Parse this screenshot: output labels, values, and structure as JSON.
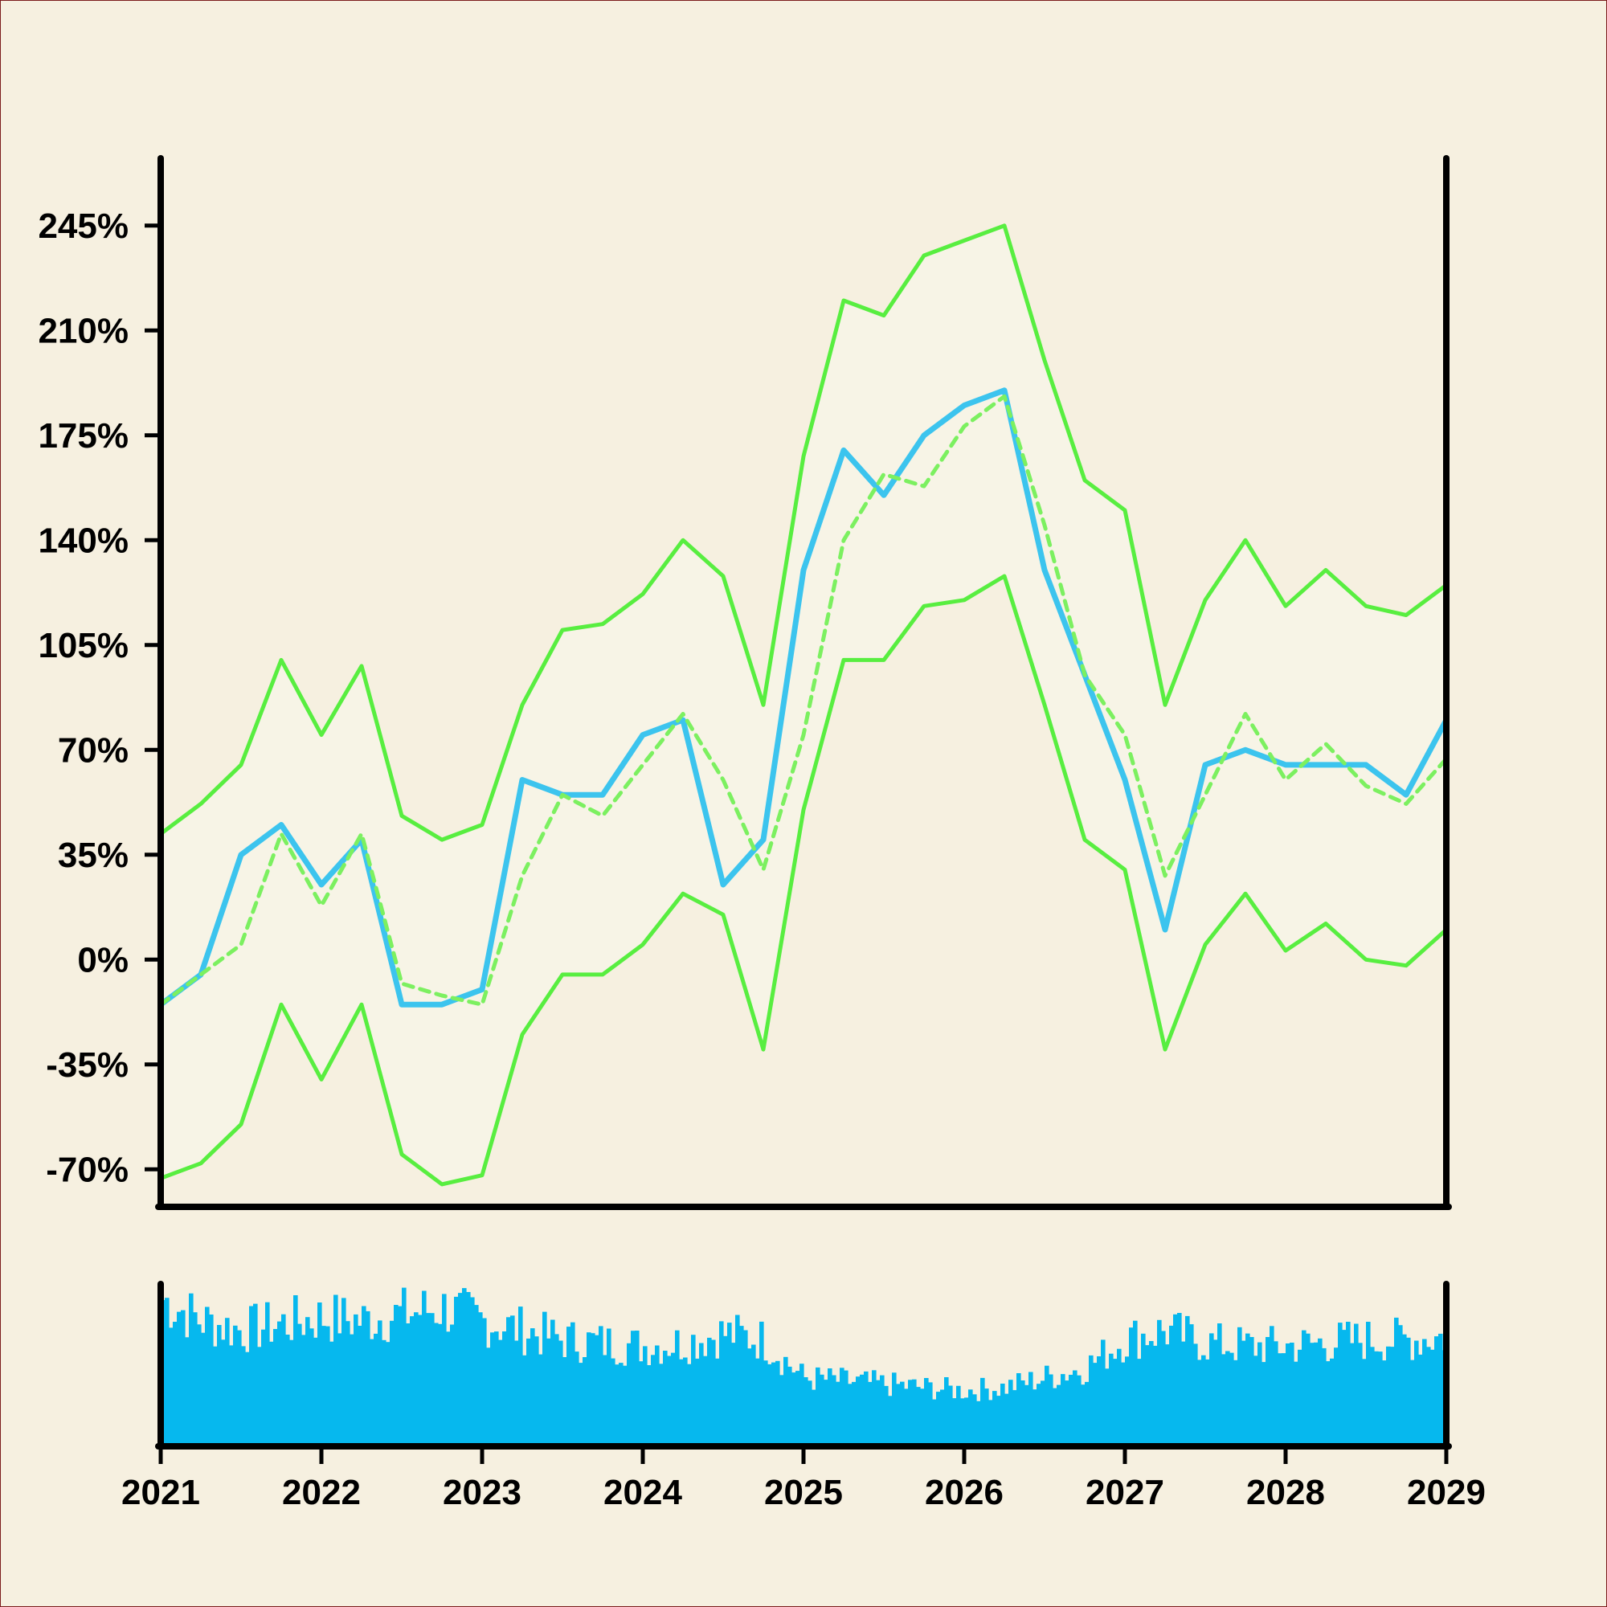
{
  "chart_data": [
    {
      "type": "line",
      "title": "",
      "xlabel": "",
      "ylabel": "",
      "xlim": [
        2021,
        2029
      ],
      "ylim": [
        -82,
        268
      ],
      "y_ticks": [
        -70,
        -35,
        0,
        35,
        70,
        105,
        140,
        175,
        210,
        245
      ],
      "y_tick_labels": [
        "-70%",
        "-35%",
        "0%",
        "35%",
        "70%",
        "105%",
        "140%",
        "175%",
        "210%",
        "245%"
      ],
      "y_format": "percent",
      "grid": false,
      "legend": "none",
      "series": [
        {
          "role": "price",
          "color": "#3cc4ee",
          "x": [
            2021.0,
            2021.25,
            2021.5,
            2021.75,
            2022.0,
            2022.25,
            2022.5,
            2022.75,
            2023.0,
            2023.25,
            2023.5,
            2023.75,
            2024.0,
            2024.25,
            2024.5,
            2024.75,
            2025.0,
            2025.25,
            2025.5,
            2025.75,
            2026.0,
            2026.25,
            2026.5,
            2026.75,
            2027.0,
            2027.25,
            2027.5,
            2027.75,
            2028.0,
            2028.25,
            2028.5,
            2028.75,
            2029.0
          ],
          "y": [
            -15,
            -5,
            35,
            45,
            25,
            40,
            -15,
            -15,
            -10,
            60,
            55,
            55,
            75,
            80,
            25,
            40,
            130,
            170,
            155,
            175,
            185,
            190,
            130,
            95,
            60,
            10,
            65,
            70,
            65,
            65,
            65,
            55,
            80
          ]
        },
        {
          "role": "moving-average",
          "color": "#7cf060",
          "dash": "dashed",
          "x": [
            2021.0,
            2021.25,
            2021.5,
            2021.75,
            2022.0,
            2022.25,
            2022.5,
            2022.75,
            2023.0,
            2023.25,
            2023.5,
            2023.75,
            2024.0,
            2024.25,
            2024.5,
            2024.75,
            2025.0,
            2025.25,
            2025.5,
            2025.75,
            2026.0,
            2026.25,
            2026.5,
            2026.75,
            2027.0,
            2027.25,
            2027.5,
            2027.75,
            2028.0,
            2028.25,
            2028.5,
            2028.75,
            2029.0
          ],
          "y": [
            -15,
            -5,
            5,
            42,
            18,
            42,
            -8,
            -12,
            -15,
            28,
            55,
            48,
            65,
            82,
            60,
            30,
            75,
            140,
            162,
            158,
            178,
            188,
            145,
            95,
            75,
            28,
            55,
            82,
            60,
            72,
            58,
            52,
            67
          ]
        },
        {
          "role": "upper-band",
          "color": "#58ee40",
          "x": [
            2021.0,
            2021.25,
            2021.5,
            2021.75,
            2022.0,
            2022.25,
            2022.5,
            2022.75,
            2023.0,
            2023.25,
            2023.5,
            2023.75,
            2024.0,
            2024.25,
            2024.5,
            2024.75,
            2025.0,
            2025.25,
            2025.5,
            2025.75,
            2026.0,
            2026.25,
            2026.5,
            2026.75,
            2027.0,
            2027.25,
            2027.5,
            2027.75,
            2028.0,
            2028.25,
            2028.5,
            2028.75,
            2029.0
          ],
          "y": [
            42,
            52,
            65,
            100,
            75,
            98,
            48,
            40,
            45,
            85,
            110,
            112,
            122,
            140,
            128,
            85,
            168,
            220,
            215,
            235,
            240,
            245,
            200,
            160,
            150,
            85,
            120,
            140,
            118,
            130,
            118,
            115,
            125
          ]
        },
        {
          "role": "lower-band",
          "color": "#58ee40",
          "x": [
            2021.0,
            2021.25,
            2021.5,
            2021.75,
            2022.0,
            2022.25,
            2022.5,
            2022.75,
            2023.0,
            2023.25,
            2023.5,
            2023.75,
            2024.0,
            2024.25,
            2024.5,
            2024.75,
            2025.0,
            2025.25,
            2025.5,
            2025.75,
            2026.0,
            2026.25,
            2026.5,
            2026.75,
            2027.0,
            2027.25,
            2027.5,
            2027.75,
            2028.0,
            2028.25,
            2028.5,
            2028.75,
            2029.0
          ],
          "y": [
            -73,
            -68,
            -55,
            -15,
            -40,
            -15,
            -65,
            -75,
            -72,
            -25,
            -5,
            -5,
            5,
            22,
            15,
            -30,
            50,
            100,
            100,
            118,
            120,
            128,
            85,
            40,
            30,
            -30,
            5,
            22,
            3,
            12,
            0,
            -2,
            10
          ]
        }
      ]
    },
    {
      "type": "bar",
      "title": "",
      "xlabel": "",
      "ylabel": "",
      "xlim": [
        2021,
        2029
      ],
      "x_ticks": [
        "2021",
        "2022",
        "2023",
        "2024",
        "2025",
        "2026",
        "2027",
        "2028",
        "2029"
      ],
      "ylim": [
        0,
        1
      ],
      "color": "#06b8ee",
      "grid": false,
      "legend": "none",
      "x": [
        2021.0,
        2021.25,
        2021.5,
        2021.75,
        2022.0,
        2022.25,
        2022.5,
        2022.75,
        2023.0,
        2023.25,
        2023.5,
        2023.75,
        2024.0,
        2024.25,
        2024.5,
        2024.75,
        2025.0,
        2025.25,
        2025.5,
        2025.75,
        2026.0,
        2026.25,
        2026.5,
        2026.75,
        2027.0,
        2027.25,
        2027.5,
        2027.75,
        2028.0,
        2028.25,
        2028.5,
        2028.75,
        2029.0
      ],
      "values": [
        0.92,
        0.78,
        0.72,
        0.76,
        0.8,
        0.78,
        0.82,
        0.86,
        0.78,
        0.72,
        0.66,
        0.64,
        0.62,
        0.64,
        0.7,
        0.66,
        0.42,
        0.4,
        0.38,
        0.36,
        0.34,
        0.36,
        0.42,
        0.48,
        0.66,
        0.72,
        0.64,
        0.62,
        0.62,
        0.64,
        0.66,
        0.66,
        0.68
      ]
    }
  ]
}
